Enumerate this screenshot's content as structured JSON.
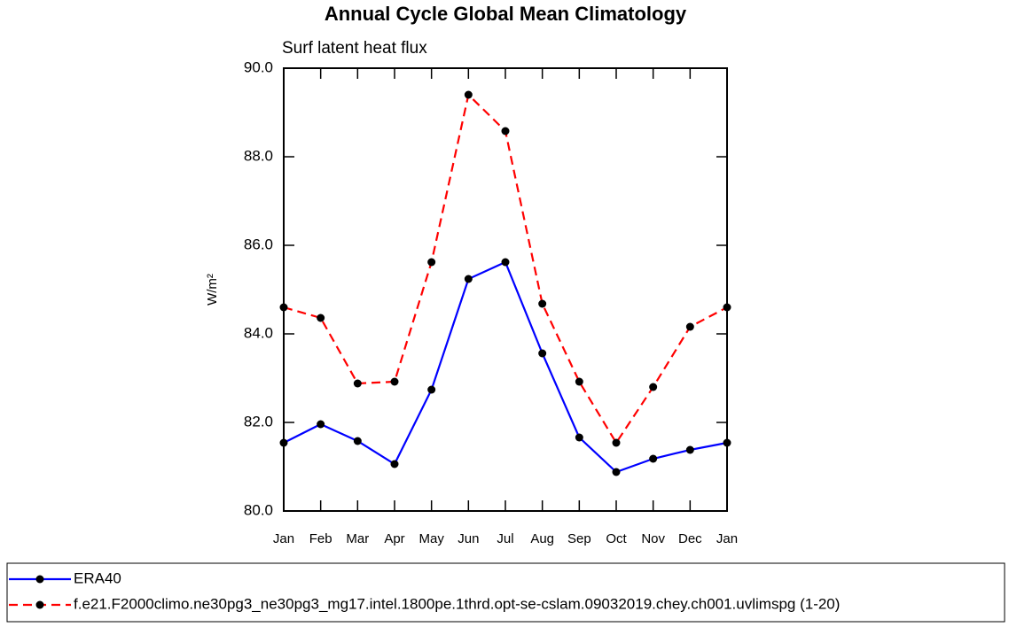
{
  "chart_data": {
    "type": "line",
    "title": "Annual Cycle Global Mean Climatology",
    "subtitle": "Surf latent heat flux",
    "y_label": "W/m²",
    "categories": [
      "Jan",
      "Feb",
      "Mar",
      "Apr",
      "May",
      "Jun",
      "Jul",
      "Aug",
      "Sep",
      "Oct",
      "Nov",
      "Dec",
      "Jan"
    ],
    "series": [
      {
        "name": "ERA40",
        "color": "#0000ff",
        "dash": "solid",
        "values": [
          81.54,
          81.96,
          81.58,
          81.06,
          82.74,
          85.24,
          85.62,
          83.56,
          81.66,
          80.88,
          81.18,
          81.38,
          81.54
        ]
      },
      {
        "name": "f.e21.F2000climo.ne30pg3_ne30pg3_mg17.intel.1800pe.1thrd.opt-se-cslam.09032019.chey.ch001.uvlimspg (1-20)",
        "color": "#ff0000",
        "dash": "dashed",
        "values": [
          84.6,
          84.36,
          82.88,
          82.92,
          85.62,
          89.4,
          88.58,
          84.68,
          82.92,
          81.54,
          82.8,
          84.16,
          84.6
        ]
      }
    ],
    "ylim": [
      80,
      90
    ],
    "yticks": [
      {
        "value": 80,
        "label": "80.0"
      },
      {
        "value": 82,
        "label": "82.0"
      },
      {
        "value": 84,
        "label": "84.0"
      },
      {
        "value": 86,
        "label": "86.0"
      },
      {
        "value": 88,
        "label": "88.0"
      },
      {
        "value": 90,
        "label": "90.0"
      }
    ],
    "grid": false
  }
}
